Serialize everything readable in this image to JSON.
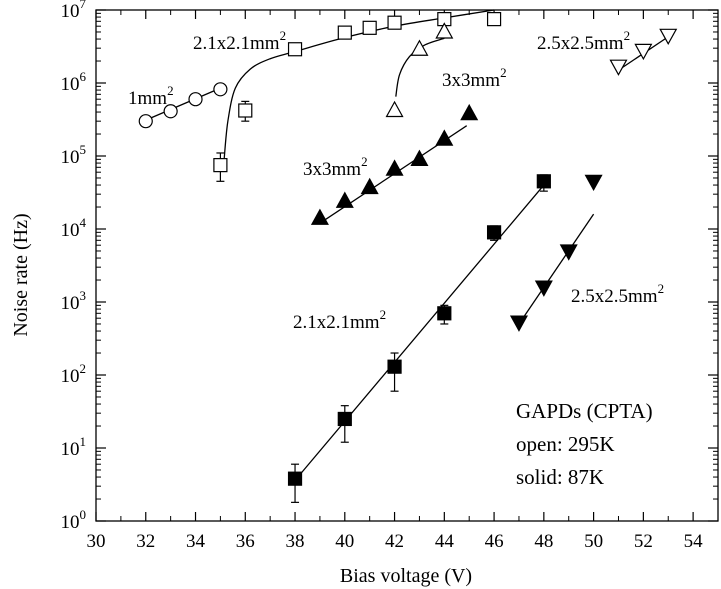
{
  "chart_data": {
    "type": "scatter",
    "xlabel": "Bias voltage (V)",
    "ylabel": "Noise rate (Hz)",
    "xlim": [
      30,
      55
    ],
    "ylim": [
      1,
      10000000
    ],
    "yscale": "log",
    "grid": false,
    "x_ticks": [
      30,
      32,
      34,
      36,
      38,
      40,
      42,
      44,
      46,
      48,
      50,
      52,
      54
    ],
    "y_ticks": [
      {
        "value": 1,
        "base": "10",
        "exp": "0"
      },
      {
        "value": 10,
        "base": "10",
        "exp": "1"
      },
      {
        "value": 100,
        "base": "10",
        "exp": "2"
      },
      {
        "value": 1000,
        "base": "10",
        "exp": "3"
      },
      {
        "value": 10000,
        "base": "10",
        "exp": "4"
      },
      {
        "value": 100000,
        "base": "10",
        "exp": "5"
      },
      {
        "value": 1000000,
        "base": "10",
        "exp": "6"
      },
      {
        "value": 10000000,
        "base": "10",
        "exp": "7"
      }
    ],
    "annotations": [
      {
        "id": "open_1mm",
        "text": "1mm",
        "sup": "2"
      },
      {
        "id": "open_2p1",
        "text": "2.1x2.1mm",
        "sup": "2"
      },
      {
        "id": "open_2p5",
        "text": "2.5x2.5mm",
        "sup": "2"
      },
      {
        "id": "open_3x3",
        "text": "3x3mm",
        "sup": "2"
      },
      {
        "id": "solid_3x3",
        "text": "3x3mm",
        "sup": "2"
      },
      {
        "id": "solid_2p1",
        "text": "2.1x2.1mm",
        "sup": "2"
      },
      {
        "id": "solid_2p5",
        "text": "2.5x2.5mm",
        "sup": "2"
      }
    ],
    "legend_text": [
      "GAPDs (CPTA)",
      "open: 295K",
      "solid: 87K"
    ],
    "series": [
      {
        "marker": "circle-open",
        "x": [
          32,
          33,
          34,
          35
        ],
        "y": [
          300000,
          410000,
          600000,
          820000
        ],
        "fit": [
          [
            32,
            310000
          ],
          [
            35,
            850000
          ]
        ]
      },
      {
        "marker": "square-open",
        "x": [
          35,
          36,
          38,
          40,
          41,
          42,
          44,
          46
        ],
        "y": [
          75000,
          420000,
          2900000,
          4900000,
          5700000,
          6700000,
          7500000,
          7500000
        ],
        "yerr_low": [
          45000,
          300000,
          0,
          0,
          0,
          0,
          0,
          0
        ],
        "yerr_high": [
          110000,
          560000,
          0,
          0,
          0,
          0,
          0,
          0
        ],
        "fit": [
          [
            35.15,
            90000
          ],
          [
            35.3,
            300000
          ],
          [
            35.6,
            850000
          ],
          [
            36.2,
            1550000
          ],
          [
            37,
            2150000
          ],
          [
            38,
            2700000
          ],
          [
            40,
            4200000
          ],
          [
            42,
            6000000
          ],
          [
            44,
            7800000
          ],
          [
            46,
            10000000
          ]
        ]
      },
      {
        "marker": "triangle-up-open",
        "x": [
          42,
          43,
          44
        ],
        "y": [
          420000,
          2900000,
          5000000
        ],
        "fit": [
          [
            42.05,
            650000
          ],
          [
            42.2,
            1300000
          ],
          [
            42.6,
            2300000
          ],
          [
            43.2,
            3300000
          ],
          [
            44,
            4100000
          ]
        ]
      },
      {
        "marker": "triangle-down-open",
        "x": [
          51,
          52,
          53
        ],
        "y": [
          1700000,
          2800000,
          4500000
        ],
        "fit": [
          [
            51,
            1500000
          ],
          [
            53,
            4300000
          ]
        ]
      },
      {
        "marker": "triangle-up-filled",
        "x": [
          39,
          40,
          41,
          42,
          43,
          44,
          45
        ],
        "y": [
          14000,
          24000,
          37000,
          66000,
          90000,
          170000,
          380000
        ],
        "fit": [
          [
            39,
            12000
          ],
          [
            44.9,
            260000
          ]
        ]
      },
      {
        "marker": "square-filled",
        "x": [
          38,
          40,
          42,
          44,
          46,
          48
        ],
        "y": [
          3.8,
          25,
          130,
          700,
          9000,
          45000
        ],
        "yerr_low": [
          1.8,
          12,
          60,
          500,
          7000,
          33000
        ],
        "yerr_high": [
          6,
          38,
          200,
          900,
          11000,
          55000
        ],
        "fit": [
          [
            38,
            3.6
          ],
          [
            48,
            40000
          ]
        ]
      },
      {
        "marker": "triangle-down-filled",
        "x": [
          47,
          48,
          49,
          50
        ],
        "y": [
          530,
          1600,
          5000,
          45000
        ],
        "fit": [
          [
            47,
            500
          ],
          [
            50,
            16000
          ]
        ]
      }
    ]
  }
}
